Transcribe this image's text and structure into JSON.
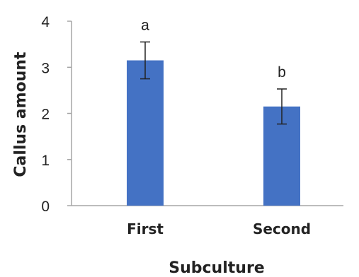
{
  "chart_data": {
    "type": "bar",
    "title": "",
    "xlabel": "Subculture",
    "ylabel": "Callus amount",
    "categories": [
      "First",
      "Second"
    ],
    "values": [
      3.15,
      2.15
    ],
    "error": [
      0.4,
      0.38
    ],
    "significance_labels": [
      "a",
      "b"
    ],
    "ylim": [
      0,
      4
    ],
    "yticks": [
      "0",
      "1",
      "2",
      "3",
      "4"
    ],
    "grid": false,
    "legend": "none",
    "bar_color": "#4472c4",
    "axis_color": "#a6a6a6",
    "error_color": "#222222"
  }
}
